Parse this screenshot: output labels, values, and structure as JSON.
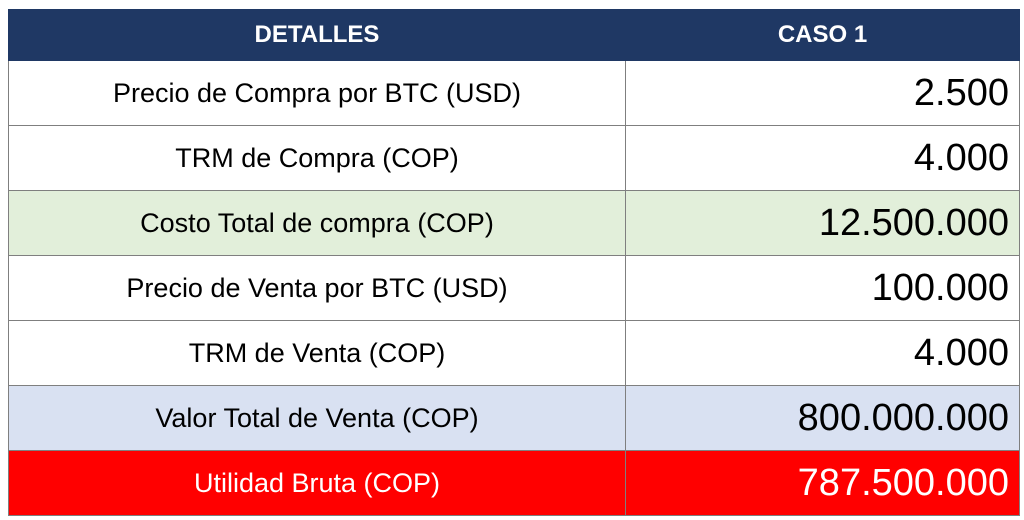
{
  "table": {
    "headers": [
      "DETALLES",
      "CASO 1"
    ],
    "rows": [
      {
        "label": "Precio de Compra por BTC (USD)",
        "value": "2.500"
      },
      {
        "label": "TRM de Compra (COP)",
        "value": "4.000"
      },
      {
        "label": "Costo Total de compra (COP)",
        "value": "12.500.000"
      },
      {
        "label": "Precio de Venta por BTC (USD)",
        "value": "100.000"
      },
      {
        "label": "TRM de Venta (COP)",
        "value": "4.000"
      },
      {
        "label": "Valor Total de Venta (COP)",
        "value": "800.000.000"
      },
      {
        "label": "Utilidad Bruta (COP)",
        "value": "787.500.000"
      }
    ]
  },
  "colors": {
    "header_bg": "#1f3864",
    "header_text": "#ffffff",
    "highlight_green": "#e2efda",
    "highlight_blue": "#d9e1f2",
    "highlight_red": "#ff0000",
    "border": "#7f7f7f"
  }
}
